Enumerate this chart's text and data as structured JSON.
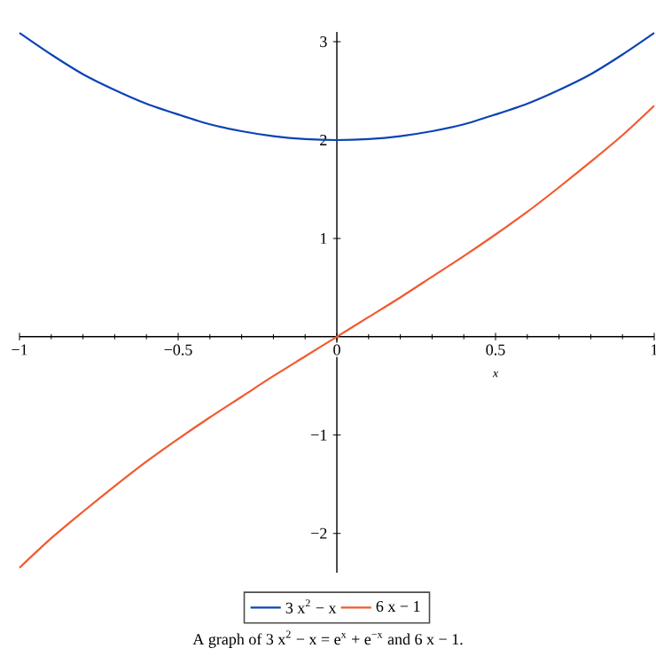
{
  "chart_data": {
    "type": "line",
    "xlabel": "x",
    "annotations": [
      "A graph of 3 x$^{2}$ − x = e$^{x}$ + e$^{−x}$ and 6 x − 1."
    ],
    "x": [
      -1,
      -0.9,
      -0.8,
      -0.7,
      -0.6,
      -0.5,
      -0.4,
      -0.3,
      -0.2,
      -0.1,
      0,
      0.1,
      0.2,
      0.3,
      0.4,
      0.5,
      0.6,
      0.7,
      0.8,
      0.9,
      1
    ],
    "series": [
      {
        "name": "3 x$^{2}$ − x",
        "color": "#0b43b5",
        "values": [
          3.09,
          2.87,
          2.67,
          2.51,
          2.37,
          2.26,
          2.16,
          2.09,
          2.04,
          2.01,
          2,
          2.01,
          2.04,
          2.09,
          2.16,
          2.26,
          2.37,
          2.51,
          2.67,
          2.87,
          3.09
        ]
      },
      {
        "name": "6 x − 1",
        "color": "#f15a2f",
        "values": [
          -2.35,
          -2.05,
          -1.78,
          -1.52,
          -1.27,
          -1.04,
          -0.82,
          -0.61,
          -0.4,
          -0.2,
          0,
          0.2,
          0.4,
          0.61,
          0.82,
          1.04,
          1.27,
          1.52,
          1.78,
          2.05,
          2.35
        ]
      }
    ],
    "xlim": [
      -1,
      1
    ],
    "ylim": [
      -2.4,
      3.1
    ],
    "xticks": [
      {
        "value": -1,
        "label": "−1"
      },
      {
        "value": -0.5,
        "label": "−0.5"
      },
      0,
      0.5,
      1
    ],
    "yticks": [
      {
        "value": -2,
        "label": "−2"
      },
      {
        "value": -1,
        "label": "−1"
      },
      1,
      2,
      3
    ],
    "legend": "bottom",
    "grid": false,
    "marker": "none",
    "line_style": "solid"
  }
}
